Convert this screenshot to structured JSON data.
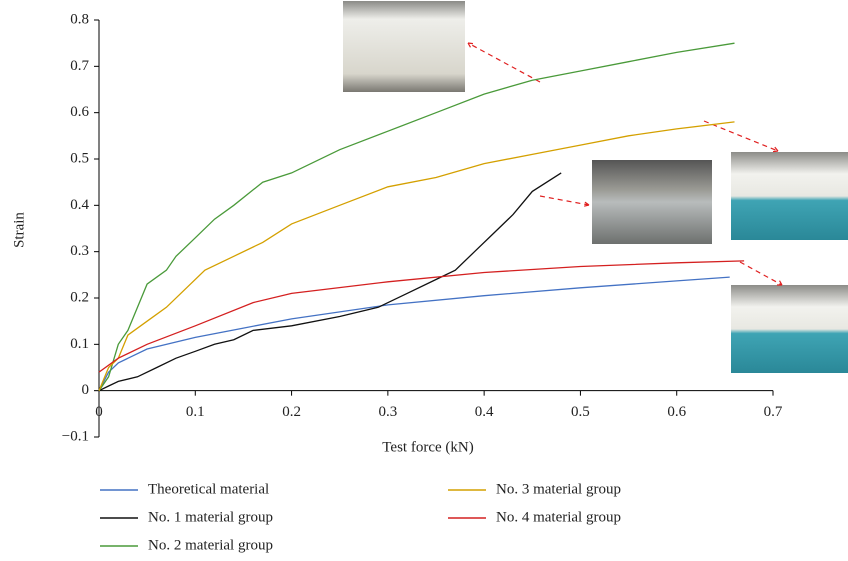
{
  "chart_data": {
    "type": "line",
    "x_label": "Test force (kN)",
    "y_label": "Strain",
    "xlim": [
      0,
      0.7
    ],
    "xticks": [
      0,
      0.1,
      0.2,
      0.3,
      0.4,
      0.5,
      0.6,
      0.7
    ],
    "ylim": [
      -0.1,
      0.8
    ],
    "yticks": [
      {
        "value": -0.1,
        "label": "−0.1"
      },
      0,
      0.1,
      0.2,
      0.3,
      0.4,
      0.5,
      0.6,
      0.7,
      0.8
    ],
    "series": [
      {
        "name": "Theoretical material",
        "color": "#4472c4",
        "x": [
          0,
          0.01,
          0.02,
          0.05,
          0.1,
          0.15,
          0.2,
          0.3,
          0.4,
          0.5,
          0.6,
          0.655
        ],
        "values": [
          0,
          0.04,
          0.06,
          0.09,
          0.115,
          0.135,
          0.155,
          0.185,
          0.205,
          0.222,
          0.237,
          0.245
        ]
      },
      {
        "name": "No. 1 material group",
        "color": "#111111",
        "x": [
          0,
          0.01,
          0.02,
          0.04,
          0.06,
          0.08,
          0.1,
          0.12,
          0.14,
          0.16,
          0.2,
          0.25,
          0.29,
          0.32,
          0.35,
          0.37,
          0.39,
          0.41,
          0.43,
          0.45,
          0.48
        ],
        "values": [
          0,
          0.01,
          0.02,
          0.03,
          0.05,
          0.07,
          0.085,
          0.1,
          0.11,
          0.13,
          0.14,
          0.16,
          0.18,
          0.21,
          0.24,
          0.26,
          0.3,
          0.34,
          0.38,
          0.43,
          0.47
        ]
      },
      {
        "name": "No. 2 material group",
        "color": "#4a9a3a",
        "x": [
          0,
          0.01,
          0.02,
          0.03,
          0.04,
          0.05,
          0.07,
          0.08,
          0.1,
          0.12,
          0.14,
          0.17,
          0.2,
          0.25,
          0.3,
          0.35,
          0.4,
          0.45,
          0.5,
          0.55,
          0.6,
          0.66
        ],
        "values": [
          0,
          0.03,
          0.1,
          0.13,
          0.18,
          0.23,
          0.26,
          0.29,
          0.33,
          0.37,
          0.4,
          0.45,
          0.47,
          0.52,
          0.56,
          0.6,
          0.64,
          0.67,
          0.69,
          0.71,
          0.73,
          0.75
        ]
      },
      {
        "name": "No. 3 material group",
        "color": "#d4a000",
        "x": [
          0,
          0.01,
          0.02,
          0.03,
          0.05,
          0.07,
          0.09,
          0.11,
          0.14,
          0.17,
          0.2,
          0.25,
          0.3,
          0.35,
          0.4,
          0.45,
          0.5,
          0.55,
          0.6,
          0.66
        ],
        "values": [
          0,
          0.05,
          0.07,
          0.12,
          0.15,
          0.18,
          0.22,
          0.26,
          0.29,
          0.32,
          0.36,
          0.4,
          0.44,
          0.46,
          0.49,
          0.51,
          0.53,
          0.55,
          0.565,
          0.58
        ]
      },
      {
        "name": "No. 4 material group",
        "color": "#d42020",
        "x": [
          0,
          0.02,
          0.05,
          0.1,
          0.16,
          0.2,
          0.3,
          0.4,
          0.5,
          0.6,
          0.67
        ],
        "values": [
          0.04,
          0.07,
          0.1,
          0.14,
          0.19,
          0.21,
          0.235,
          0.255,
          0.268,
          0.276,
          0.28
        ]
      }
    ]
  }
}
